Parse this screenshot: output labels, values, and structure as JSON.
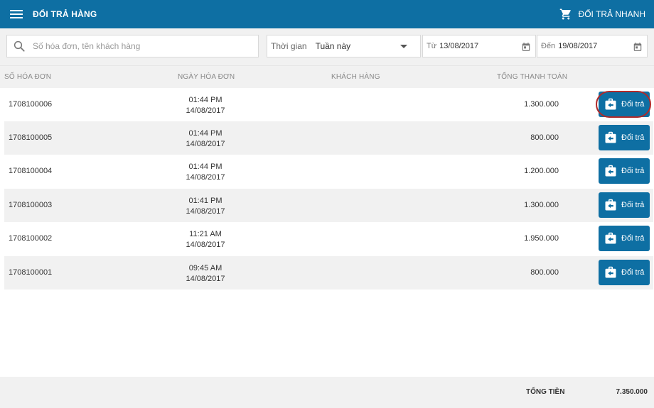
{
  "header": {
    "title": "ĐỔI TRẢ HÀNG",
    "quick_return_label": "ĐỔI TRẢ NHANH"
  },
  "filters": {
    "search_placeholder": "Số hóa đơn, tên khách hàng",
    "time_label": "Thời gian",
    "time_value": "Tuần này",
    "from_label": "Từ",
    "from_date": "13/08/2017",
    "to_label": "Đến",
    "to_date": "19/08/2017"
  },
  "table": {
    "columns": [
      "SỐ HÓA ĐƠN",
      "NGÀY HÓA ĐƠN",
      "KHÁCH HÀNG",
      "TỔNG THANH TOÁN"
    ],
    "rows": [
      {
        "invoice": "1708100006",
        "time": "01:44 PM",
        "date": "14/08/2017",
        "customer": "",
        "total": "1.300.000",
        "action": "Đổi trả"
      },
      {
        "invoice": "1708100005",
        "time": "01:44 PM",
        "date": "14/08/2017",
        "customer": "",
        "total": "800.000",
        "action": "Đổi trả"
      },
      {
        "invoice": "1708100004",
        "time": "01:44 PM",
        "date": "14/08/2017",
        "customer": "",
        "total": "1.200.000",
        "action": "Đổi trả"
      },
      {
        "invoice": "1708100003",
        "time": "01:41 PM",
        "date": "14/08/2017",
        "customer": "",
        "total": "1.300.000",
        "action": "Đổi trả"
      },
      {
        "invoice": "1708100002",
        "time": "11:21 AM",
        "date": "14/08/2017",
        "customer": "",
        "total": "1.950.000",
        "action": "Đổi trả"
      },
      {
        "invoice": "1708100001",
        "time": "09:45 AM",
        "date": "14/08/2017",
        "customer": "",
        "total": "800.000",
        "action": "Đổi trả"
      }
    ]
  },
  "footer": {
    "total_label": "TỔNG TIỀN",
    "total_value": "7.350.000"
  },
  "icons": {
    "menu": "menu-icon",
    "cart": "cart-icon",
    "search": "search-icon",
    "calendar": "calendar-icon",
    "return": "return-icon",
    "caret": "caret-down-icon"
  },
  "colors": {
    "primary": "#0e6fa3",
    "highlight_ring": "#b02a2a",
    "row_alt": "#f1f1f1"
  }
}
